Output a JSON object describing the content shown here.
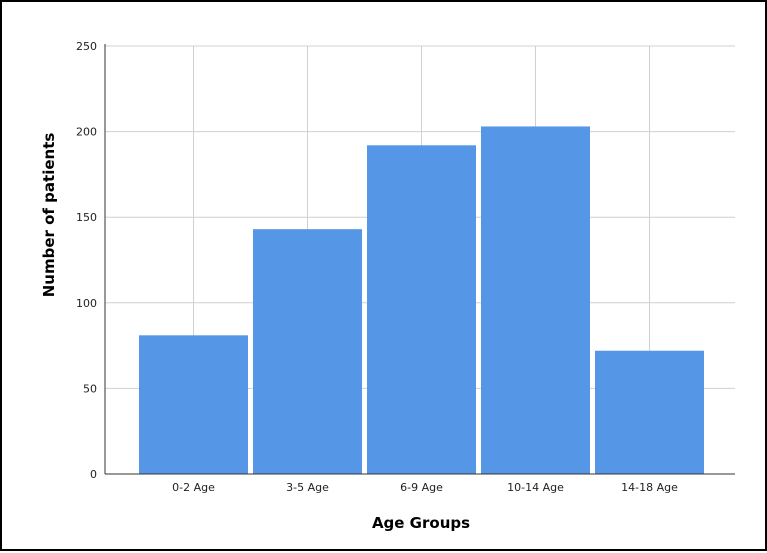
{
  "chart_data": {
    "type": "bar",
    "title": "",
    "xlabel": "Age Groups",
    "ylabel": "Number of patients",
    "categories": [
      "0-2 Age",
      "3-5 Age",
      "6-9 Age",
      "10-14 Age",
      "14-18 Age"
    ],
    "values": [
      81,
      143,
      192,
      203,
      72
    ],
    "ylim": [
      0,
      250
    ],
    "yticks": [
      0,
      50,
      100,
      150,
      200,
      250
    ],
    "grid": true,
    "legend": "none",
    "colors": {
      "bar": "#5596e6",
      "grid": "#d0d0d0",
      "axis": "#333333"
    }
  }
}
